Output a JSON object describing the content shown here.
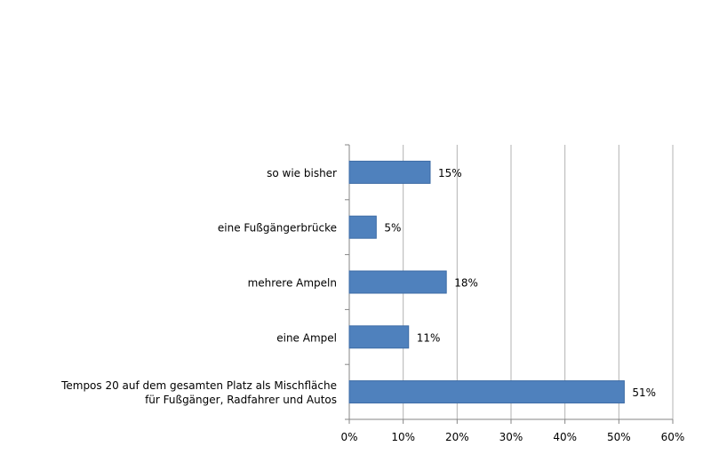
{
  "chart_data": {
    "type": "bar",
    "orientation": "horizontal",
    "title": "",
    "xlabel": "",
    "ylabel": "",
    "categories": [
      [
        "so wie bisher"
      ],
      [
        "eine Fußgängerbrücke"
      ],
      [
        "mehrere Ampeln"
      ],
      [
        "eine Ampel"
      ],
      [
        "Tempos 20 auf dem gesamten Platz als Mischfläche",
        "für Fußgänger, Radfahrer und Autos"
      ]
    ],
    "values": [
      15,
      5,
      18,
      11,
      51
    ],
    "data_labels": [
      "15%",
      "5%",
      "18%",
      "11%",
      "51%"
    ],
    "xlim": [
      0,
      60
    ],
    "xticks": [
      0,
      10,
      20,
      30,
      40,
      50,
      60
    ],
    "xtick_labels": [
      "0%",
      "10%",
      "20%",
      "30%",
      "40%",
      "50%",
      "60%"
    ],
    "grid": "vertical",
    "legend": "none",
    "colors": {
      "bar": "#4f81bd",
      "bar_border": "#3c6ba5",
      "grid": "#b3b3b3",
      "axis": "#868686"
    }
  }
}
